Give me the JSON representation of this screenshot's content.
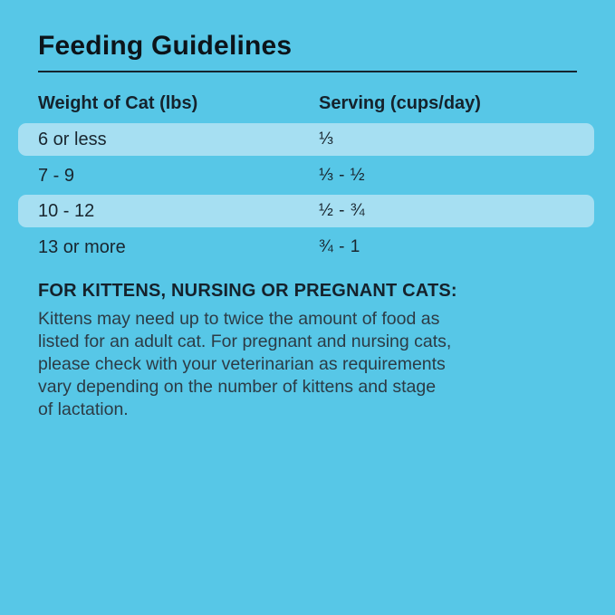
{
  "page": {
    "title": "Feeding Guidelines",
    "background_color": "#57C7E7",
    "highlight_row_color": "#A6DFF2",
    "title_color": "#0C141A",
    "text_color": "#15222C",
    "note_text_color": "#2C3B45"
  },
  "table": {
    "columns": [
      {
        "label": "Weight of Cat (lbs)"
      },
      {
        "label": "Serving (cups/day)"
      }
    ],
    "rows": [
      {
        "weight": "6 or less",
        "serving": "⅓",
        "highlighted": true
      },
      {
        "weight": "7 - 9",
        "serving": "⅓ - ½",
        "highlighted": false
      },
      {
        "weight": "10 - 12",
        "serving": "½ - ¾",
        "highlighted": true
      },
      {
        "weight": "13 or more",
        "serving": "¾ - 1",
        "highlighted": false
      }
    ]
  },
  "note": {
    "heading": "FOR KITTENS, NURSING OR PREGNANT CATS:",
    "body": "Kittens may need up to twice the amount of food as listed for an adult cat. For pregnant and nursing cats, please check with your veterinarian as requirements vary depending on the number of kittens and stage of lactation.",
    "body_lines": [
      "Kittens may need up to twice the amount of food as",
      "listed for an adult cat. For pregnant and nursing cats,",
      "please check with your veterinarian as requirements",
      "vary depending on the number of kittens and stage",
      "of lactation."
    ]
  }
}
